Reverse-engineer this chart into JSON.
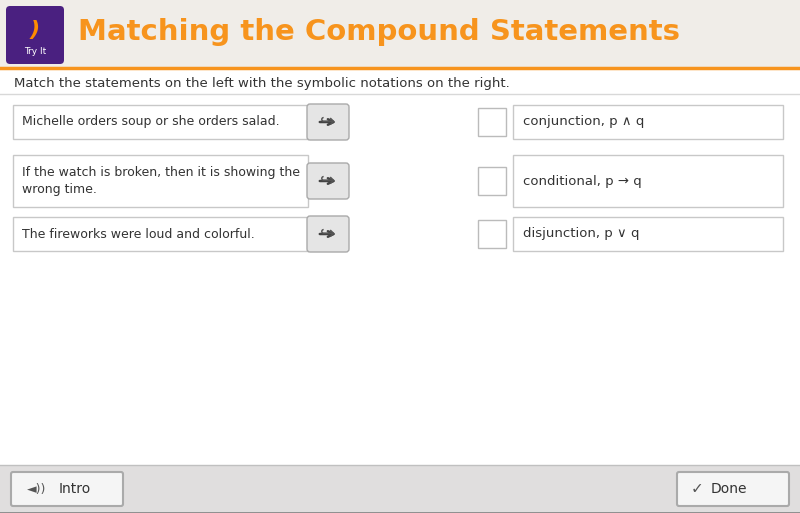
{
  "title": "Matching the Compound Statements",
  "subtitle": "Match the statements on the left with the symbolic notations on the right.",
  "header_bg": "#f0ede8",
  "header_orange": "#f7941d",
  "header_icon_bg": "#4a2080",
  "body_bg": "#ffffff",
  "border_color": "#c8c8c8",
  "left_items": [
    "Michelle orders soup or she orders salad.",
    "If the watch is broken, then it is showing the\nwrong time.",
    "The fireworks were loud and colorful."
  ],
  "right_items": [
    "conjunction, p ∧ q",
    "conditional, p → q",
    "disjunction, p ∨ q"
  ],
  "arrow_colors": [
    "#7dc242",
    "#f7941d",
    "#007070"
  ],
  "footer_bg": "#e0dede",
  "button_border": "#aaaaaa",
  "button_bg": "#f5f5f5",
  "intro_text": "Intro",
  "done_text": "Done",
  "figsize": [
    8.0,
    5.13
  ],
  "dpi": 100
}
